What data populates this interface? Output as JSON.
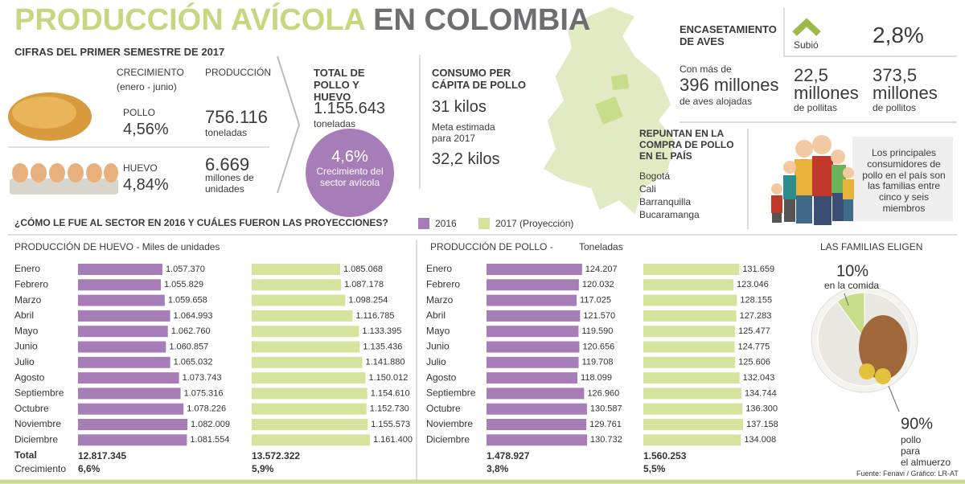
{
  "header": {
    "title_highlight": "PRODUCCIÓN AVÍCOLA",
    "title_rest": "EN COLOMBIA",
    "subtitle": "CIFRAS DEL PRIMER SEMESTRE DE 2017"
  },
  "summary": {
    "growth_header": "CRECIMIENTO",
    "growth_period": "(enero - junio)",
    "production_header": "PRODUCCIÓN",
    "items": [
      {
        "name": "POLLO",
        "growth": "4,56%",
        "production": "756.116",
        "unit": "toneladas"
      },
      {
        "name": "HUEVO",
        "growth": "4,84%",
        "production": "6.669",
        "unit": "millones de unidades"
      }
    ]
  },
  "total": {
    "title": "TOTAL DE POLLO Y HUEVO",
    "value": "1.155.643",
    "unit": "toneladas",
    "growth": "4,6%",
    "growth_label": "Crecimiento del sector avícola"
  },
  "consumption": {
    "title": "CONSUMO PER CÁPITA DE POLLO",
    "current": "31 kilos",
    "goal_label": "Meta estimada para 2017",
    "goal": "32,2 kilos"
  },
  "housing": {
    "title": "ENCASETAMIENTO DE AVES",
    "trend": "Subió",
    "change": "2,8%",
    "intro": "Con más de",
    "birds": "396 millones",
    "birds_note": "de aves alojadas",
    "hens": "22,5 millones",
    "hens_note": "de pollitas",
    "chicks": "373,5 millones",
    "chicks_note": "de pollitos"
  },
  "rebound": {
    "title": "REPUNTAN EN LA COMPRA DE POLLO EN EL PAÍS",
    "cities": [
      "Bogotá",
      "Cali",
      "Barranquilla",
      "Bucaramanga"
    ]
  },
  "families": {
    "text": "Los principales consumidores de pollo en el país son las familias entre cinco y seis miembros"
  },
  "question": "¿CÓMO LE FUE AL SECTOR EN 2016 Y CUÁLES FUERON LAS PROYECCIONES?",
  "chart_data": [
    {
      "type": "hbar",
      "title": "PRODUCCIÓN DE HUEVO -",
      "unit": "Miles de unidades",
      "categories": [
        "Enero",
        "Febrero",
        "Marzo",
        "Abril",
        "Mayo",
        "Junio",
        "Julio",
        "Agosto",
        "Septiembre",
        "Octubre",
        "Noviembre",
        "Diciembre"
      ],
      "series": [
        {
          "name": "2016",
          "color": "#a67db6",
          "values": [
            1057370,
            1055829,
            1059658,
            1064993,
            1062760,
            1060857,
            1065032,
            1073743,
            1075316,
            1078226,
            1082009,
            1081554
          ],
          "value_labels": [
            "1.057.370",
            "1.055.829",
            "1.059.658",
            "1.064.993",
            "1.062.760",
            "1.060.857",
            "1.065.032",
            "1.073.743",
            "1.075.316",
            "1.078.226",
            "1.082.009",
            "1.081.554"
          ]
        },
        {
          "name": "2017 (Proyección)",
          "color": "#d5e39d",
          "values": [
            1085068,
            1087178,
            1098254,
            1116785,
            1133395,
            1135436,
            1141880,
            1150012,
            1154610,
            1152730,
            1155573,
            1161400
          ],
          "value_labels": [
            "1.085.068",
            "1.087.178",
            "1.098.254",
            "1.116.785",
            "1.133.395",
            "1.135.436",
            "1.141.880",
            "1.150.012",
            "1.154.610",
            "1.152.730",
            "1.155.573",
            "1.161.400"
          ]
        }
      ],
      "total_label": "Total",
      "growth_label": "Crecimiento",
      "totals": [
        "12.817.345",
        "13.572.322"
      ],
      "growths": [
        "6,6%",
        "5,9%"
      ]
    },
    {
      "type": "hbar",
      "title": "PRODUCCIÓN DE POLLO -",
      "unit": "Toneladas",
      "categories": [
        "Enero",
        "Febrero",
        "Marzo",
        "Abril",
        "Mayo",
        "Junio",
        "Julio",
        "Agosto",
        "Septiembre",
        "Octubre",
        "Noviembre",
        "Diciembre"
      ],
      "series": [
        {
          "name": "2016",
          "color": "#a67db6",
          "values": [
            124207,
            120032,
            117025,
            121570,
            119590,
            120656,
            119708,
            118099,
            126960,
            130587,
            129761,
            130732
          ],
          "value_labels": [
            "124.207",
            "120.032",
            "117.025",
            "121.570",
            "119.590",
            "120.656",
            "119.708",
            "118.099",
            "126.960",
            "130.587",
            "129.761",
            "130.732"
          ]
        },
        {
          "name": "2017 (Proyección)",
          "color": "#d5e39d",
          "values": [
            131659,
            123046,
            128155,
            127283,
            125477,
            124775,
            125606,
            132043,
            134744,
            136300,
            137158,
            134008
          ],
          "value_labels": [
            "131.659",
            "123.046",
            "128.155",
            "127.283",
            "125.477",
            "124.775",
            "125.606",
            "132.043",
            "134.744",
            "136.300",
            "137.158",
            "134.008"
          ]
        }
      ],
      "totals": [
        "1.478.927",
        "1.560.253"
      ],
      "growths": [
        "3,8%",
        "5,5%"
      ]
    },
    {
      "type": "pie",
      "title": "LAS FAMILIAS ELIGEN",
      "values": [
        10,
        90
      ],
      "value_labels": [
        "10%",
        "90%"
      ],
      "labels": [
        "en la comida",
        "pollo para el almuerzo"
      ],
      "colors": [
        "#c9dc8a",
        "#e9e7e1"
      ]
    }
  ],
  "source": "Fuente: Fenavi / Gráfico: LR-AT"
}
